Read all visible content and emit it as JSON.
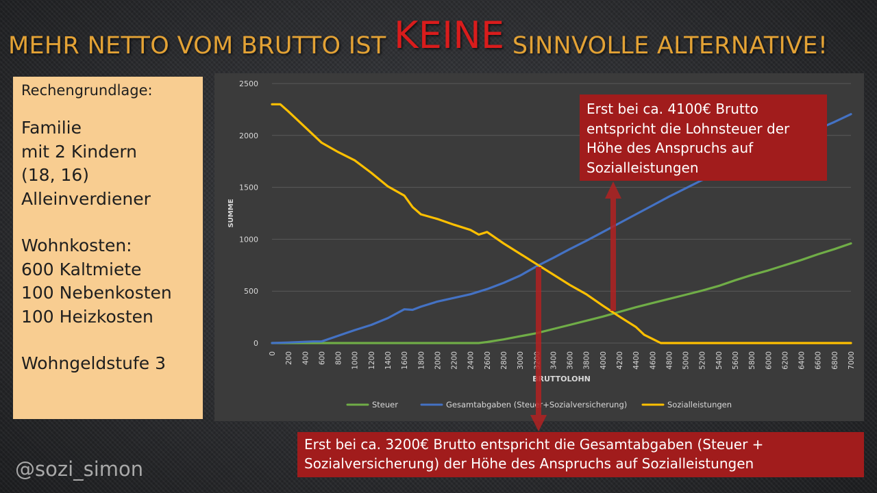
{
  "title": {
    "part1": "MEHR NETTO VOM BRUTTO IST ",
    "highlight": "KEINE",
    "part2": " SINNVOLLE ALTERNATIVE!"
  },
  "infobox": {
    "heading": "Rechengrundlage:",
    "family_lines": [
      "Familie",
      "mit 2 Kindern",
      "(18, 16)",
      "Alleinverdiener"
    ],
    "housing_lines": [
      "Wohnkosten:",
      "600 Kaltmiete",
      "100 Nebenkosten",
      "100 Heizkosten"
    ],
    "wohngeld": "Wohngeldstufe 3"
  },
  "callouts": {
    "top": [
      "Erst bei ca. 4100€ Brutto",
      "entspricht die Lohnsteuer der",
      "Höhe des Anspruchs auf",
      "Sozialleistungen"
    ],
    "bottom": [
      "Erst bei ca. 3200€ Brutto entspricht die Gesamtabgaben (Steuer +",
      "Sozialversicherung) der Höhe des Anspruchs auf  Sozialleistungen"
    ]
  },
  "handle": "@sozi_simon",
  "colors": {
    "title": "#e3a235",
    "title_highlight": "#d91c1c",
    "infobox_bg": "#f8cd91",
    "callout_bg": "#a11c1c",
    "arrow": "#b22222",
    "steuer": "#70ad47",
    "gesamt": "#4472c4",
    "sozial": "#ffc000"
  },
  "chart_data": {
    "type": "line",
    "xlabel": "BRUTTOLOHN",
    "ylabel": "SUMME",
    "ylim": [
      0,
      2500
    ],
    "yticks": [
      0,
      500,
      1000,
      1500,
      2000,
      2500
    ],
    "xlim": [
      0,
      7000
    ],
    "xticks": [
      0,
      200,
      400,
      600,
      800,
      1000,
      1200,
      1400,
      1600,
      1800,
      2000,
      2200,
      2400,
      2600,
      2800,
      3000,
      3200,
      3400,
      3600,
      3800,
      4000,
      4200,
      4400,
      4600,
      4800,
      5000,
      5200,
      5400,
      5600,
      5800,
      6000,
      6200,
      6400,
      6600,
      6800,
      7000
    ],
    "grid": true,
    "legend_position": "bottom",
    "series": [
      {
        "name": "Steuer",
        "color": "#70ad47",
        "points": [
          [
            0,
            0
          ],
          [
            2500,
            0
          ],
          [
            2600,
            10
          ],
          [
            2800,
            35
          ],
          [
            3000,
            65
          ],
          [
            3200,
            95
          ],
          [
            3400,
            135
          ],
          [
            3600,
            175
          ],
          [
            3800,
            215
          ],
          [
            4000,
            255
          ],
          [
            4200,
            300
          ],
          [
            4400,
            345
          ],
          [
            4600,
            385
          ],
          [
            4800,
            425
          ],
          [
            5000,
            465
          ],
          [
            5200,
            505
          ],
          [
            5400,
            550
          ],
          [
            5600,
            605
          ],
          [
            5800,
            655
          ],
          [
            6000,
            700
          ],
          [
            6200,
            750
          ],
          [
            6400,
            800
          ],
          [
            6600,
            855
          ],
          [
            6800,
            905
          ],
          [
            7000,
            960
          ]
        ]
      },
      {
        "name": "Gesamtabgaben (Steuer+Sozialversicherung)",
        "color": "#4472c4",
        "points": [
          [
            0,
            0
          ],
          [
            200,
            5
          ],
          [
            400,
            12
          ],
          [
            500,
            15
          ],
          [
            600,
            15
          ],
          [
            800,
            70
          ],
          [
            1000,
            125
          ],
          [
            1200,
            175
          ],
          [
            1400,
            240
          ],
          [
            1600,
            325
          ],
          [
            1700,
            320
          ],
          [
            1800,
            350
          ],
          [
            2000,
            400
          ],
          [
            2200,
            435
          ],
          [
            2400,
            470
          ],
          [
            2600,
            520
          ],
          [
            2800,
            580
          ],
          [
            3000,
            650
          ],
          [
            3200,
            740
          ],
          [
            3400,
            820
          ],
          [
            3600,
            905
          ],
          [
            3800,
            985
          ],
          [
            4000,
            1070
          ],
          [
            4200,
            1155
          ],
          [
            4400,
            1240
          ],
          [
            4600,
            1325
          ],
          [
            4800,
            1410
          ],
          [
            5000,
            1490
          ],
          [
            5200,
            1570
          ],
          [
            5400,
            1640
          ],
          [
            5600,
            1710
          ],
          [
            5800,
            1780
          ],
          [
            6000,
            1850
          ],
          [
            6200,
            1920
          ],
          [
            6400,
            1990
          ],
          [
            6600,
            2060
          ],
          [
            6800,
            2130
          ],
          [
            7000,
            2205
          ]
        ]
      },
      {
        "name": "Sozialleistungen",
        "color": "#ffc000",
        "points": [
          [
            0,
            2300
          ],
          [
            100,
            2300
          ],
          [
            200,
            2230
          ],
          [
            400,
            2080
          ],
          [
            600,
            1930
          ],
          [
            800,
            1840
          ],
          [
            1000,
            1760
          ],
          [
            1200,
            1640
          ],
          [
            1400,
            1510
          ],
          [
            1600,
            1420
          ],
          [
            1700,
            1310
          ],
          [
            1800,
            1240
          ],
          [
            2000,
            1195
          ],
          [
            2200,
            1140
          ],
          [
            2400,
            1090
          ],
          [
            2500,
            1045
          ],
          [
            2600,
            1070
          ],
          [
            2800,
            960
          ],
          [
            3000,
            860
          ],
          [
            3200,
            760
          ],
          [
            3400,
            660
          ],
          [
            3600,
            560
          ],
          [
            3800,
            470
          ],
          [
            4000,
            360
          ],
          [
            4200,
            255
          ],
          [
            4400,
            155
          ],
          [
            4500,
            80
          ],
          [
            4600,
            40
          ],
          [
            4700,
            0
          ],
          [
            5000,
            0
          ],
          [
            6000,
            0
          ],
          [
            7000,
            0
          ]
        ]
      }
    ]
  }
}
